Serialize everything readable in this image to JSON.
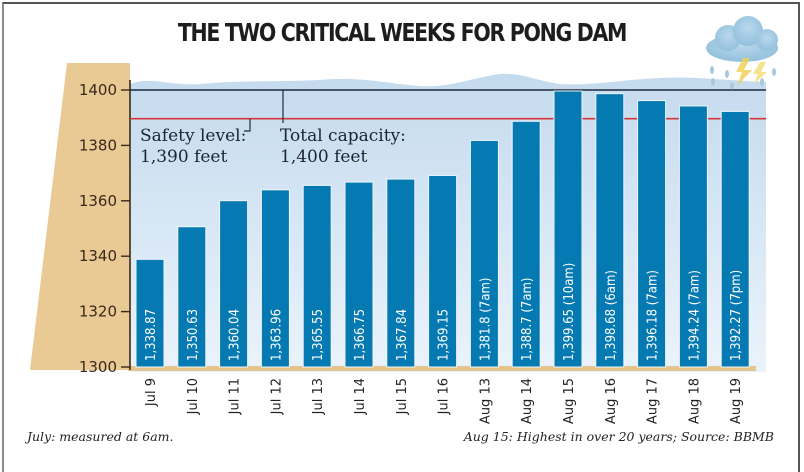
{
  "chart_data": {
    "type": "bar",
    "title": "THE TWO CRITICAL WEEKS FOR PONG DAM",
    "xlabel": "",
    "ylabel": "",
    "ylim": [
      1300,
      1400
    ],
    "yticks": [
      1300,
      1320,
      1340,
      1360,
      1380,
      1400
    ],
    "grid": false,
    "categories": [
      "Jul 9",
      "Jul 10",
      "Jul 11",
      "Jul 12",
      "Jul 13",
      "Jul 14",
      "Jul 15",
      "Jul 16",
      "Aug 13",
      "Aug 14",
      "Aug 15",
      "Aug 16",
      "Aug 17",
      "Aug 18",
      "Aug 19"
    ],
    "values": [
      1338.87,
      1350.63,
      1360.04,
      1363.96,
      1365.55,
      1366.75,
      1367.84,
      1369.15,
      1381.8,
      1388.7,
      1399.65,
      1398.68,
      1396.18,
      1394.24,
      1392.27
    ],
    "data_labels": [
      "1,338.87",
      "1,350.63",
      "1,360.04",
      "1,363.96",
      "1,365.55",
      "1,366.75",
      "1,367.84",
      "1,369.15",
      "1,381.8 (7am)",
      "1,388.7 (7am)",
      "1,399.65 (10am)",
      "1,398.68 (6am)",
      "1,396.18 (7am)",
      "1,394.24 (7am)",
      "1,392.27 (7pm)"
    ],
    "reference_lines": [
      {
        "name": "Safety level",
        "value": 1390,
        "label_line1": "Safety level:",
        "label_line2": "1,390 feet",
        "color": "#d2363a"
      },
      {
        "name": "Total capacity",
        "value": 1400,
        "label_line1": "Total capacity:",
        "label_line2": "1,400 feet",
        "color": "#1b2b3b"
      }
    ],
    "footnotes": {
      "left": "July: measured at 6am.",
      "right": "Aug 15: Highest in over 20 years; Source: BBMB"
    },
    "colors": {
      "bar": "#0579b1",
      "water_top": "#c6dcef",
      "water_bottom": "#e9f3fb",
      "dam": "#e9c994",
      "axis": "#3a2a1a"
    }
  }
}
